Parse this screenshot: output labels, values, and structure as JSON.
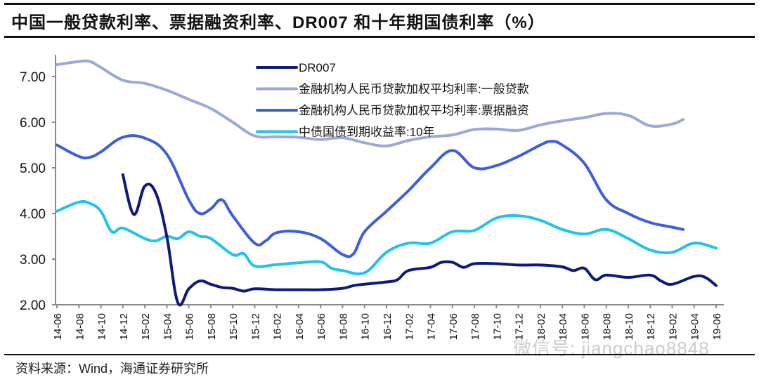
{
  "title": "中国一般贷款利率、票据融资利率、DR007 和十年期国债利率（%）",
  "source": "资料来源：Wind，海通证券研究所",
  "watermark": "微信号: jiangchao8848",
  "chart_data": {
    "type": "line",
    "title": "中国一般贷款利率、票据融资利率、DR007 和十年期国债利率（%）",
    "xlabel": "",
    "ylabel": "",
    "ylim": [
      2.0,
      7.5
    ],
    "yticks": [
      "2.00",
      "3.00",
      "4.00",
      "5.00",
      "6.00",
      "7.00"
    ],
    "ytick_values": [
      2,
      3,
      4,
      5,
      6,
      7
    ],
    "xticks": [
      "14-06",
      "14-08",
      "14-10",
      "14-12",
      "15-02",
      "15-04",
      "15-06",
      "15-08",
      "15-10",
      "15-12",
      "16-02",
      "16-04",
      "16-06",
      "16-08",
      "16-10",
      "16-12",
      "17-02",
      "17-04",
      "17-06",
      "17-08",
      "17-10",
      "17-12",
      "18-02",
      "18-04",
      "18-06",
      "18-08",
      "18-10",
      "18-12",
      "19-02",
      "19-04",
      "19-06"
    ],
    "x_start": "14-06",
    "x_end": "19-06",
    "grid": false,
    "legend_position": "top-center",
    "series": [
      {
        "name": "DR007",
        "color": "#0d1a7a",
        "points": [
          [
            "14-12",
            4.85
          ],
          [
            "15-01",
            3.98
          ],
          [
            "15-02",
            4.6
          ],
          [
            "15-03",
            4.45
          ],
          [
            "15-04",
            3.5
          ],
          [
            "15-05",
            2.05
          ],
          [
            "15-06",
            2.35
          ],
          [
            "15-07",
            2.52
          ],
          [
            "15-08",
            2.45
          ],
          [
            "15-09",
            2.38
          ],
          [
            "15-10",
            2.36
          ],
          [
            "15-11",
            2.3
          ],
          [
            "15-12",
            2.35
          ],
          [
            "16-02",
            2.33
          ],
          [
            "16-04",
            2.33
          ],
          [
            "16-06",
            2.33
          ],
          [
            "16-08",
            2.36
          ],
          [
            "16-09",
            2.42
          ],
          [
            "16-10",
            2.45
          ],
          [
            "16-12",
            2.5
          ],
          [
            "17-01",
            2.55
          ],
          [
            "17-02",
            2.75
          ],
          [
            "17-04",
            2.82
          ],
          [
            "17-05",
            2.93
          ],
          [
            "17-06",
            2.93
          ],
          [
            "17-07",
            2.82
          ],
          [
            "17-08",
            2.9
          ],
          [
            "17-10",
            2.9
          ],
          [
            "17-12",
            2.87
          ],
          [
            "18-02",
            2.87
          ],
          [
            "18-04",
            2.83
          ],
          [
            "18-05",
            2.75
          ],
          [
            "18-06",
            2.8
          ],
          [
            "18-07",
            2.55
          ],
          [
            "18-08",
            2.65
          ],
          [
            "18-10",
            2.6
          ],
          [
            "18-12",
            2.65
          ],
          [
            "19-01",
            2.52
          ],
          [
            "19-02",
            2.45
          ],
          [
            "19-04",
            2.62
          ],
          [
            "19-05",
            2.6
          ],
          [
            "19-06",
            2.42
          ]
        ]
      },
      {
        "name": "金融机构人民币贷款加权平均利率:一般贷款",
        "color": "#9aaad6",
        "points": [
          [
            "14-06",
            7.26
          ],
          [
            "14-08",
            7.33
          ],
          [
            "14-09",
            7.33
          ],
          [
            "14-10",
            7.2
          ],
          [
            "14-12",
            6.92
          ],
          [
            "15-02",
            6.85
          ],
          [
            "15-04",
            6.7
          ],
          [
            "15-06",
            6.5
          ],
          [
            "15-08",
            6.3
          ],
          [
            "15-10",
            6.0
          ],
          [
            "15-12",
            5.7
          ],
          [
            "16-02",
            5.68
          ],
          [
            "16-04",
            5.67
          ],
          [
            "16-06",
            5.62
          ],
          [
            "16-08",
            5.66
          ],
          [
            "16-10",
            5.55
          ],
          [
            "16-12",
            5.48
          ],
          [
            "17-02",
            5.6
          ],
          [
            "17-04",
            5.68
          ],
          [
            "17-06",
            5.72
          ],
          [
            "17-08",
            5.84
          ],
          [
            "17-10",
            5.85
          ],
          [
            "17-12",
            5.82
          ],
          [
            "18-02",
            5.94
          ],
          [
            "18-04",
            6.03
          ],
          [
            "18-06",
            6.1
          ],
          [
            "18-08",
            6.19
          ],
          [
            "18-10",
            6.15
          ],
          [
            "18-12",
            5.92
          ],
          [
            "19-02",
            5.96
          ],
          [
            "19-03",
            6.06
          ]
        ]
      },
      {
        "name": "金融机构人民币贷款加权平均利率:票据融资",
        "color": "#3d5fd9",
        "points": [
          [
            "14-06",
            5.5
          ],
          [
            "14-08",
            5.25
          ],
          [
            "14-09",
            5.23
          ],
          [
            "14-10",
            5.35
          ],
          [
            "14-12",
            5.67
          ],
          [
            "15-02",
            5.65
          ],
          [
            "15-04",
            5.3
          ],
          [
            "15-06",
            4.3
          ],
          [
            "15-07",
            4.0
          ],
          [
            "15-08",
            4.1
          ],
          [
            "15-09",
            4.3
          ],
          [
            "15-10",
            3.95
          ],
          [
            "15-12",
            3.35
          ],
          [
            "16-01",
            3.4
          ],
          [
            "16-02",
            3.58
          ],
          [
            "16-04",
            3.6
          ],
          [
            "16-06",
            3.45
          ],
          [
            "16-08",
            3.1
          ],
          [
            "16-09",
            3.12
          ],
          [
            "16-10",
            3.6
          ],
          [
            "16-12",
            4.05
          ],
          [
            "17-02",
            4.5
          ],
          [
            "17-04",
            5.0
          ],
          [
            "17-06",
            5.38
          ],
          [
            "17-08",
            5.0
          ],
          [
            "17-10",
            5.05
          ],
          [
            "17-12",
            5.25
          ],
          [
            "18-02",
            5.5
          ],
          [
            "18-03",
            5.58
          ],
          [
            "18-04",
            5.5
          ],
          [
            "18-06",
            5.1
          ],
          [
            "18-08",
            4.3
          ],
          [
            "18-10",
            4.0
          ],
          [
            "18-12",
            3.8
          ],
          [
            "19-02",
            3.7
          ],
          [
            "19-03",
            3.65
          ]
        ]
      },
      {
        "name": "中债国债到期收益率:10年",
        "color": "#22c3ea",
        "points": [
          [
            "14-06",
            4.05
          ],
          [
            "14-08",
            4.25
          ],
          [
            "14-09",
            4.22
          ],
          [
            "14-10",
            4.05
          ],
          [
            "14-11",
            3.6
          ],
          [
            "14-12",
            3.68
          ],
          [
            "15-02",
            3.45
          ],
          [
            "15-03",
            3.4
          ],
          [
            "15-04",
            3.5
          ],
          [
            "15-05",
            3.45
          ],
          [
            "15-06",
            3.6
          ],
          [
            "15-07",
            3.5
          ],
          [
            "15-08",
            3.45
          ],
          [
            "15-10",
            3.1
          ],
          [
            "15-11",
            3.12
          ],
          [
            "15-12",
            2.85
          ],
          [
            "16-02",
            2.88
          ],
          [
            "16-04",
            2.92
          ],
          [
            "16-06",
            2.94
          ],
          [
            "16-07",
            2.8
          ],
          [
            "16-08",
            2.75
          ],
          [
            "16-10",
            2.7
          ],
          [
            "16-12",
            3.15
          ],
          [
            "17-02",
            3.35
          ],
          [
            "17-04",
            3.35
          ],
          [
            "17-06",
            3.6
          ],
          [
            "17-08",
            3.63
          ],
          [
            "17-10",
            3.9
          ],
          [
            "17-12",
            3.95
          ],
          [
            "18-02",
            3.85
          ],
          [
            "18-04",
            3.65
          ],
          [
            "18-06",
            3.55
          ],
          [
            "18-08",
            3.65
          ],
          [
            "18-10",
            3.45
          ],
          [
            "18-12",
            3.2
          ],
          [
            "19-02",
            3.15
          ],
          [
            "19-04",
            3.35
          ],
          [
            "19-06",
            3.24
          ]
        ]
      }
    ]
  }
}
